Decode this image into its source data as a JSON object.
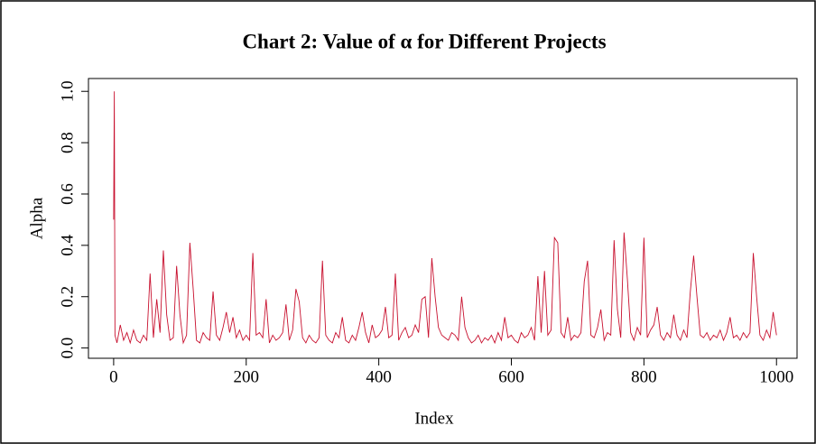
{
  "chart_data": {
    "type": "line",
    "title": "Chart 2: Value of α for Different Projects",
    "x_label": "Index",
    "y_label": "Alpha",
    "color": "#c8102e",
    "x": [
      0,
      1,
      2,
      5,
      10,
      15,
      20,
      25,
      30,
      35,
      40,
      45,
      50,
      55,
      60,
      65,
      70,
      75,
      80,
      85,
      90,
      95,
      100,
      105,
      110,
      115,
      120,
      125,
      130,
      135,
      140,
      145,
      150,
      155,
      160,
      165,
      170,
      175,
      180,
      185,
      190,
      195,
      200,
      205,
      210,
      215,
      220,
      225,
      230,
      235,
      240,
      245,
      250,
      255,
      260,
      265,
      270,
      275,
      280,
      285,
      290,
      295,
      300,
      305,
      310,
      315,
      320,
      325,
      330,
      335,
      340,
      345,
      350,
      355,
      360,
      365,
      370,
      375,
      380,
      385,
      390,
      395,
      400,
      405,
      410,
      415,
      420,
      425,
      430,
      435,
      440,
      445,
      450,
      455,
      460,
      465,
      470,
      475,
      480,
      485,
      490,
      495,
      500,
      505,
      510,
      515,
      520,
      525,
      530,
      535,
      540,
      545,
      550,
      555,
      560,
      565,
      570,
      575,
      580,
      585,
      590,
      595,
      600,
      605,
      610,
      615,
      620,
      625,
      630,
      635,
      640,
      645,
      650,
      655,
      660,
      665,
      670,
      675,
      680,
      685,
      690,
      695,
      700,
      705,
      710,
      715,
      720,
      725,
      730,
      735,
      740,
      745,
      750,
      755,
      760,
      765,
      770,
      775,
      780,
      785,
      790,
      795,
      800,
      805,
      810,
      815,
      820,
      825,
      830,
      835,
      840,
      845,
      850,
      855,
      860,
      865,
      870,
      875,
      880,
      885,
      890,
      895,
      900,
      905,
      910,
      915,
      920,
      925,
      930,
      935,
      940,
      945,
      950,
      955,
      960,
      965,
      970,
      975,
      980,
      985,
      990,
      995,
      1000
    ],
    "values": [
      0.5,
      1.0,
      0.05,
      0.02,
      0.09,
      0.03,
      0.06,
      0.02,
      0.07,
      0.03,
      0.02,
      0.05,
      0.03,
      0.29,
      0.04,
      0.19,
      0.06,
      0.38,
      0.13,
      0.03,
      0.04,
      0.32,
      0.13,
      0.02,
      0.05,
      0.41,
      0.23,
      0.03,
      0.02,
      0.06,
      0.04,
      0.03,
      0.22,
      0.05,
      0.03,
      0.08,
      0.14,
      0.06,
      0.12,
      0.04,
      0.07,
      0.03,
      0.05,
      0.03,
      0.37,
      0.05,
      0.06,
      0.04,
      0.19,
      0.02,
      0.05,
      0.03,
      0.04,
      0.06,
      0.17,
      0.03,
      0.07,
      0.23,
      0.18,
      0.04,
      0.02,
      0.05,
      0.03,
      0.02,
      0.04,
      0.34,
      0.05,
      0.03,
      0.02,
      0.06,
      0.04,
      0.12,
      0.03,
      0.02,
      0.05,
      0.03,
      0.08,
      0.14,
      0.06,
      0.02,
      0.09,
      0.04,
      0.05,
      0.07,
      0.16,
      0.04,
      0.05,
      0.29,
      0.03,
      0.06,
      0.08,
      0.04,
      0.05,
      0.09,
      0.06,
      0.19,
      0.2,
      0.04,
      0.35,
      0.2,
      0.08,
      0.05,
      0.04,
      0.03,
      0.06,
      0.05,
      0.03,
      0.2,
      0.08,
      0.04,
      0.02,
      0.03,
      0.05,
      0.02,
      0.04,
      0.03,
      0.05,
      0.02,
      0.06,
      0.03,
      0.12,
      0.04,
      0.05,
      0.03,
      0.02,
      0.06,
      0.04,
      0.05,
      0.08,
      0.03,
      0.28,
      0.06,
      0.3,
      0.05,
      0.07,
      0.43,
      0.41,
      0.06,
      0.04,
      0.12,
      0.03,
      0.05,
      0.04,
      0.06,
      0.26,
      0.34,
      0.05,
      0.04,
      0.08,
      0.15,
      0.03,
      0.06,
      0.05,
      0.42,
      0.15,
      0.04,
      0.45,
      0.27,
      0.06,
      0.03,
      0.08,
      0.05,
      0.43,
      0.04,
      0.07,
      0.09,
      0.16,
      0.05,
      0.03,
      0.06,
      0.04,
      0.13,
      0.05,
      0.03,
      0.07,
      0.04,
      0.22,
      0.36,
      0.2,
      0.05,
      0.04,
      0.06,
      0.03,
      0.05,
      0.04,
      0.07,
      0.03,
      0.06,
      0.12,
      0.04,
      0.05,
      0.03,
      0.06,
      0.04,
      0.06,
      0.37,
      0.2,
      0.05,
      0.03,
      0.07,
      0.04,
      0.14,
      0.05
    ],
    "xlim": [
      -38,
      1031
    ],
    "xticks": [
      0,
      200,
      400,
      600,
      800,
      1000
    ],
    "ylim": [
      -0.04,
      1.05
    ],
    "yticks": [
      {
        "value": 0,
        "label": "0.0"
      },
      0.2,
      0.4,
      0.6,
      0.8,
      {
        "value": 1,
        "label": "1.0"
      }
    ]
  }
}
